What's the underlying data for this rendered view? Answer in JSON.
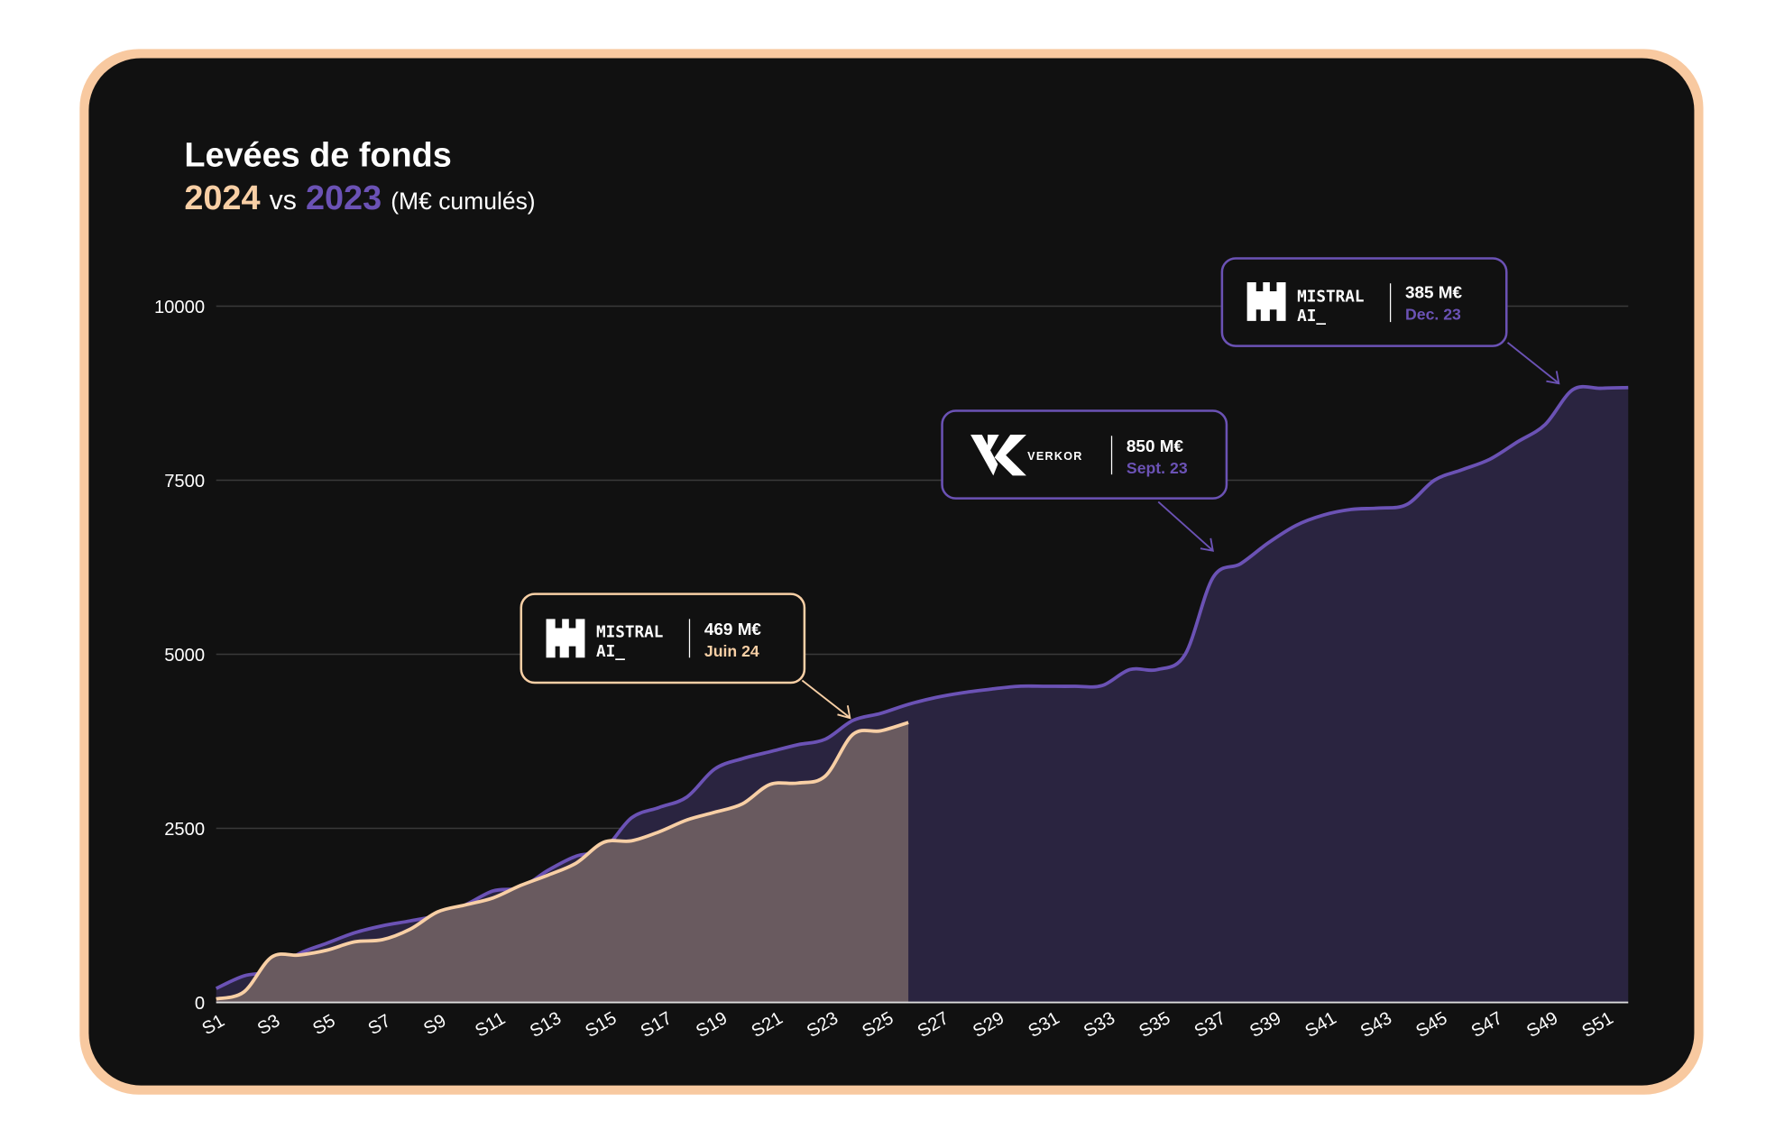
{
  "chart_data": {
    "type": "area",
    "title": "Levées de fonds",
    "subtitle": {
      "year_a": "2024",
      "vs": "vs",
      "year_b": "2023",
      "unit": "(M€ cumulés)"
    },
    "categories": [
      "S1",
      null,
      "S3",
      null,
      "S5",
      null,
      "S7",
      null,
      "S9",
      null,
      "S11",
      null,
      "S13",
      null,
      "S15",
      null,
      "S17",
      null,
      "S19",
      null,
      "S21",
      null,
      "S23",
      null,
      "S25",
      null,
      "S27",
      null,
      "S29",
      null,
      "S31",
      null,
      "S33",
      null,
      "S35",
      null,
      "S37",
      null,
      "S39",
      null,
      "S41",
      null,
      "S43",
      null,
      "S45",
      null,
      "S47",
      null,
      "S49",
      null,
      "S51",
      null
    ],
    "series": [
      {
        "name": "2023",
        "color": "#6b52b5",
        "fill": "#2a2440",
        "values": [
          200,
          380,
          450,
          700,
          850,
          1000,
          1100,
          1170,
          1250,
          1400,
          1600,
          1650,
          1900,
          2100,
          2200,
          2650,
          2800,
          2950,
          3350,
          3500,
          3600,
          3700,
          3780,
          4050,
          4150,
          4280,
          4380,
          4450,
          4500,
          4540,
          4540,
          4540,
          4550,
          4780,
          4780,
          5000,
          6100,
          6300,
          6600,
          6850,
          7000,
          7080,
          7100,
          7150,
          7500,
          7650,
          7800,
          8050,
          8300,
          8800,
          8820,
          8830
        ]
      },
      {
        "name": "2024",
        "color": "#f8cfa5",
        "fill": "#695a5f",
        "values": [
          50,
          150,
          650,
          680,
          750,
          870,
          900,
          1050,
          1300,
          1400,
          1500,
          1680,
          1830,
          2000,
          2300,
          2320,
          2450,
          2620,
          2730,
          2850,
          3130,
          3150,
          3250,
          3850,
          3900,
          4020,
          null,
          null,
          null,
          null,
          null,
          null,
          null,
          null,
          null,
          null,
          null,
          null,
          null,
          null,
          null,
          null,
          null,
          null,
          null,
          null,
          null,
          null,
          null,
          null,
          null,
          null
        ]
      }
    ],
    "ylim": [
      0,
      10000
    ],
    "yticks": [
      0,
      2500,
      5000,
      7500,
      10000
    ],
    "grid": true,
    "annotations": [
      {
        "logo_text": [
          "MISTRAL",
          "AI_"
        ],
        "amount": "469 M€",
        "date": "Juin 24"
      },
      {
        "logo_text": [
          "VERKOR"
        ],
        "amount": "850 M€",
        "date": "Sept. 23"
      },
      {
        "logo_text": [
          "MISTRAL",
          "AI_"
        ],
        "amount": "385 M€",
        "date": "Dec. 23"
      }
    ]
  }
}
